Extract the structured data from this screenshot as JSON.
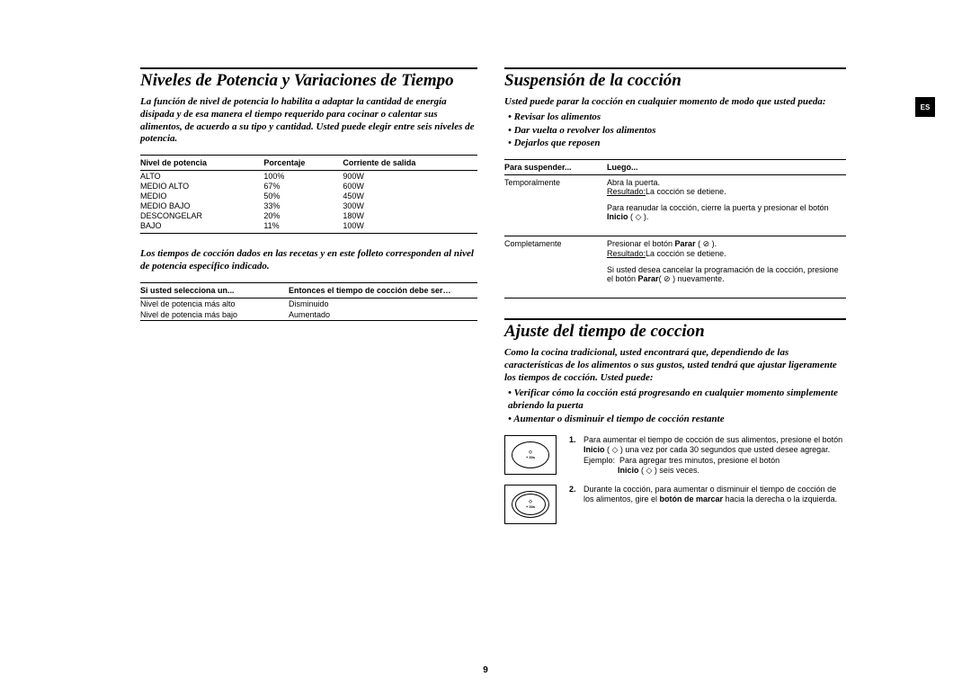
{
  "lang_tab": "ES",
  "page_number": "9",
  "left": {
    "h_power": "Niveles de Potencia y Variaciones de Tiempo",
    "intro": "La función de nivel de potencia lo habilita a adaptar la cantidad de energía disipada y de esa manera el tiempo requerido para cocinar o calentar sus alimentos, de acuerdo a su tipo y cantidad. Usted puede elegir entre seis niveles de potencia.",
    "t1_headers": [
      "Nivel de potencia",
      "Porcentaje",
      "Corriente de salida"
    ],
    "t1_rows": [
      [
        "ALTO",
        "100%",
        "900W"
      ],
      [
        "MEDIO ALTO",
        "67%",
        "600W"
      ],
      [
        "MEDIO",
        "50%",
        "450W"
      ],
      [
        "MEDIO BAJO",
        "33%",
        "300W"
      ],
      [
        "DESCONGELAR",
        "20%",
        "180W"
      ],
      [
        "BAJO",
        "11%",
        "100W"
      ]
    ],
    "note": "Los tiempos de cocción dados en las recetas y en este folleto corresponden al nivel de potencia específico indicado.",
    "t2_headers": [
      "Si usted selecciona un...",
      "Entonces el tiempo de cocción debe ser…"
    ],
    "t2_rows": [
      [
        "Nivel de potencia más alto",
        "Disminuido"
      ],
      [
        "Nivel de potencia más bajo",
        "Aumentado"
      ]
    ]
  },
  "right": {
    "h_susp": "Suspensión de la cocción",
    "susp_intro": "Usted puede parar la cocción en cualquier momento de modo que usted pueda:",
    "susp_bullets": [
      "Revisar los alimentos",
      "Dar vuelta o revolver los alimentos",
      "Dejarlos que reposen"
    ],
    "t3_headers": [
      "Para suspender...",
      "Luego..."
    ],
    "t3_r1c1": "Temporalmente",
    "t3_r1_l1": "Abra la puerta.",
    "t3_r1_l2a": "Resultado:",
    "t3_r1_l2b": "La cocción se detiene.",
    "t3_r1_l3a": "Para reanudar la cocción, cierre la puerta y presionar el botón ",
    "t3_r1_l3b": "Inicio",
    "t3_r1_l3c": " ( ◇ ).",
    "t3_r2c1": "Completamente",
    "t3_r2_l1a": "Presionar el botón ",
    "t3_r2_l1b": "Parar",
    "t3_r2_l1c": " ( ⊘ ).",
    "t3_r2_l2a": "Resultado:",
    "t3_r2_l2b": "La cocción se detiene.",
    "t3_r2_l3a": "Si usted desea cancelar la programación de la cocción, presione el botón ",
    "t3_r2_l3b": "Parar",
    "t3_r2_l3c": "( ⊘ ) nuevamente.",
    "h_adj": "Ajuste del tiempo de coccion",
    "adj_intro": "Como la cocina tradicional, usted encontrará que, dependiendo de las características de los alimentos o sus gustos, usted tendrá que ajustar ligeramente los tiempos de cocción. Usted puede:",
    "adj_bullets": [
      "Verificar cómo la cocción está progresando en cualquier momento simplemente abriendo la puerta",
      "Aumentar o disminuir el tiempo de cocción restante"
    ],
    "step1_num": "1.",
    "step1_a": "Para aumentar el tiempo de cocción de sus alimentos, presione el botón ",
    "step1_b": "Inicio",
    "step1_c": " ( ◇ ) una vez por cada 30 segundos que usted desee agregar.",
    "step1_ex_label": "Ejemplo:",
    "step1_ex_a": "Para agregar tres minutos, presione el botón",
    "step1_ex_b": "Inicio",
    "step1_ex_c": " ( ◇ ) seis veces.",
    "step2_num": "2.",
    "step2_a": "Durante la cocción, para aumentar o disminuir el tiempo de cocción de los alimentos, gire el ",
    "step2_b": "botón de marcar",
    "step2_c": " hacia la derecha o la izquierda.",
    "dial_label1": "◇\n+ 30s",
    "dial_label2": "◇\n+ 30s"
  }
}
